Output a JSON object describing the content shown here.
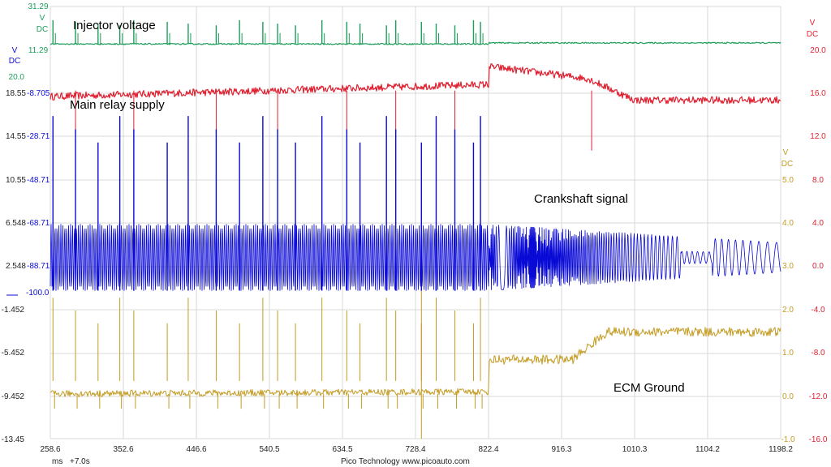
{
  "chart_data": {
    "type": "line",
    "source": "Pico Technology   www.picoauto.com",
    "colors": {
      "green": "#1e9e5a",
      "red": "#e02030",
      "blue": "#0a0ad6",
      "gold": "#c49b22",
      "grid": "#d8d8d8"
    },
    "x_axis": {
      "unit": "ms",
      "offset_label": "+7.0s",
      "ticks": [
        "258.6",
        "352.6",
        "446.6",
        "540.5",
        "634.5",
        "728.4",
        "822.4",
        "916.3",
        "1010.3",
        "1104.2",
        "1198.2"
      ],
      "range": [
        258.6,
        1198.2
      ]
    },
    "left_axes": {
      "green": {
        "unit": "V",
        "sub": "DC",
        "ticks": [
          "31.29",
          "11.29",
          "20.0"
        ]
      },
      "dark": [
        "18.55",
        "14.55",
        "10.55",
        "6.548",
        "2.548",
        "-1.452",
        "-5.452",
        "-9.452",
        "-13.45"
      ],
      "blue": {
        "unit": "V",
        "sub": "DC",
        "ticks": [
          "-8.705",
          "-28.71",
          "-48.71",
          "-68.71",
          "-88.71",
          "-100.0"
        ]
      }
    },
    "right_axes": {
      "red": {
        "unit": "V",
        "sub": "DC",
        "ticks": [
          "20.0",
          "16.0",
          "12.0",
          "8.0",
          "4.0",
          "0.0",
          "-4.0",
          "-8.0",
          "-12.0",
          "-16.0"
        ]
      },
      "gold": {
        "unit": "V",
        "sub": "DC",
        "ticks": [
          "5.0",
          "4.0",
          "3.0",
          "2.0",
          "1.0",
          "0.0",
          "-1.0"
        ]
      }
    },
    "series": [
      {
        "name": "Injector voltage",
        "color": "green",
        "axis_range": [
          -8.705,
          31.29
        ],
        "baseline": 14.0,
        "pulse_peak": 25.0,
        "pulses_until_ms": 822.4,
        "after_level": 14.5
      },
      {
        "name": "Main relay supply",
        "color": "red",
        "axis_range": [
          -16.0,
          20.0
        ],
        "start_level": 12.5,
        "end_level_before_crank_end": 13.5,
        "peak_after_start": 15.0,
        "settled_level": 12.2
      },
      {
        "name": "Crankshaft signal",
        "color": "blue",
        "axis_range": [
          -100.0,
          -8.705
        ],
        "high": -68.0,
        "low": -98.0,
        "spike_peak": -19.0,
        "decay_from_ms": 822.4
      },
      {
        "name": "ECM Ground",
        "color": "gold",
        "axis_range": [
          -1.0,
          5.0
        ],
        "level_cranking": 0.05,
        "level_after_start": 0.85,
        "level_settled": 1.5
      }
    ],
    "annotations": [
      "Injector voltage",
      "Main relay supply",
      "Crankshaft signal",
      "ECM Ground"
    ],
    "pulse_times_ms": [
      262,
      291,
      320,
      348,
      366,
      409,
      436,
      472,
      502,
      532,
      551,
      574,
      608,
      640,
      657,
      691,
      703,
      736,
      755,
      779,
      803,
      812
    ]
  }
}
